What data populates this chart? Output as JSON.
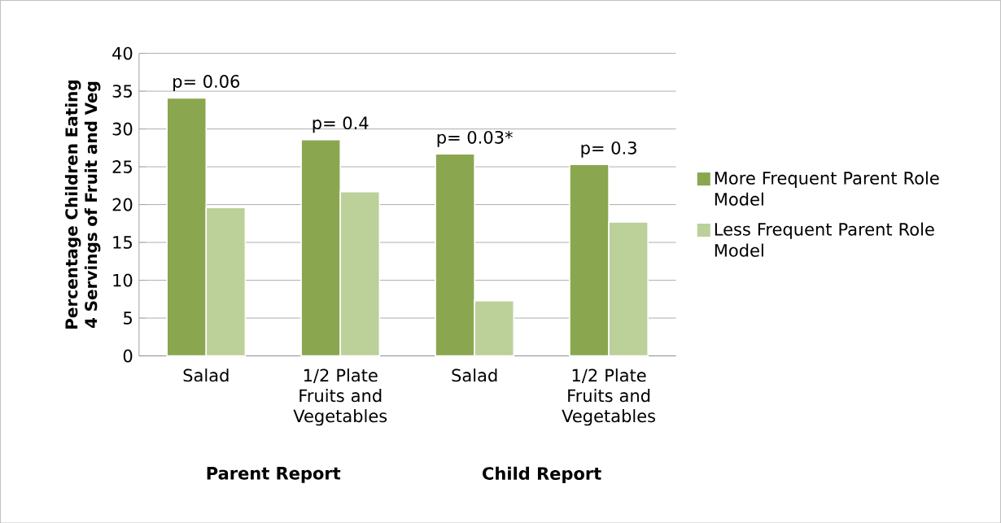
{
  "chart_data": {
    "type": "bar",
    "ylabel": "Percentage Children Eating 4 Servings of Fruit and Veg",
    "categories": [
      "Salad",
      "1/2 Plate Fruits and Vegetables",
      "Salad",
      "1/2 Plate Fruits and Vegetables"
    ],
    "series": [
      {
        "name": "More Frequent Parent Role Model",
        "color": "#8aa74f",
        "values": [
          34.1,
          28.6,
          26.7,
          25.3
        ]
      },
      {
        "name": "Less Frequent Parent Role Model",
        "color": "#bcd09a",
        "values": [
          19.6,
          21.7,
          7.3,
          17.7
        ]
      }
    ],
    "annotations": [
      "p= 0.06",
      "p= 0.4",
      "p= 0.03*",
      "p= 0.3",
      "Parent Report",
      "Child Report"
    ],
    "ylim": [
      0,
      40
    ],
    "yticks": [
      0,
      5,
      10,
      15,
      20,
      25,
      30,
      35,
      40
    ],
    "grid": "y",
    "legend": "right"
  }
}
